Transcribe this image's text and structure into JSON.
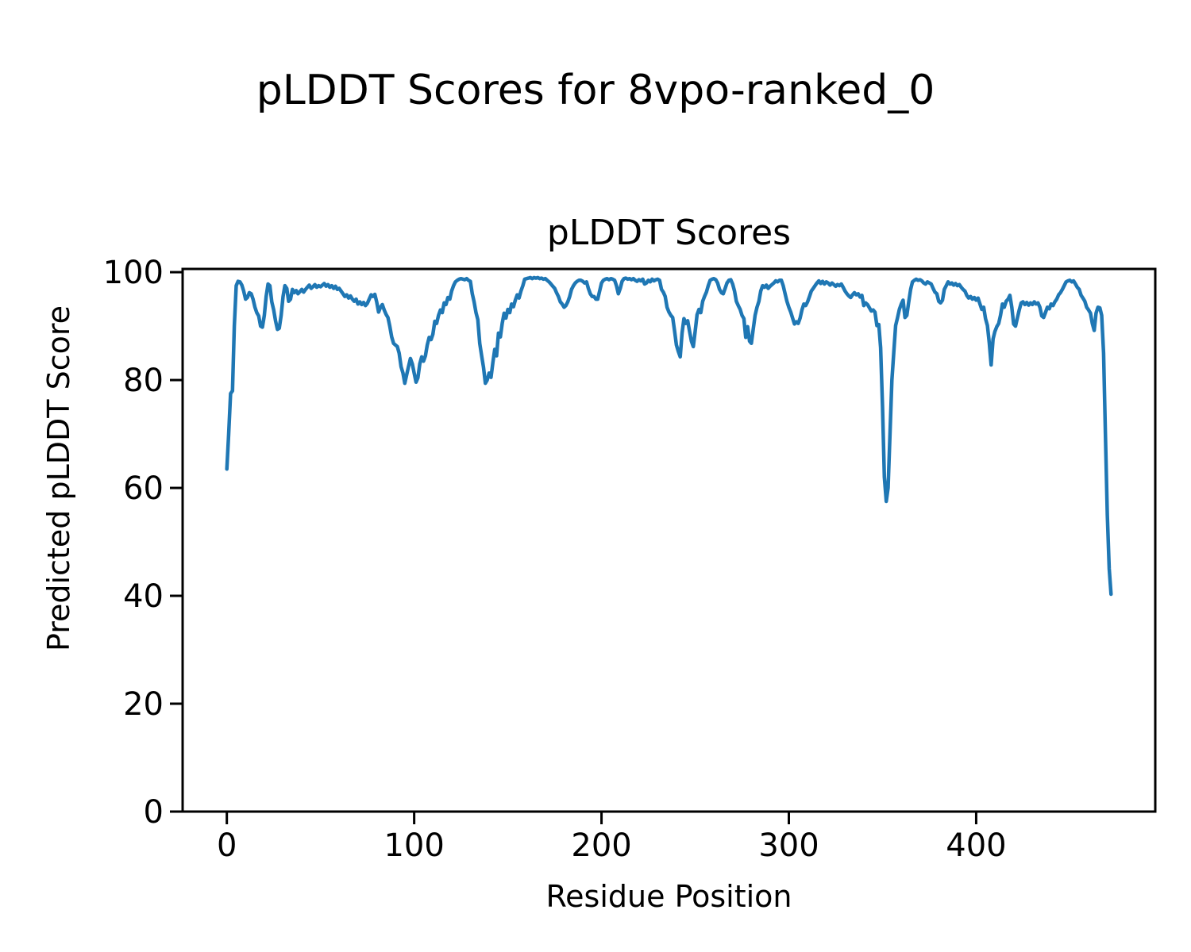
{
  "chart_data": {
    "type": "line",
    "figure_title": "pLDDT Scores for 8vpo-ranked_0",
    "title": "pLDDT Scores",
    "xlabel": "Residue Position",
    "ylabel": "Predicted pLDDT Score",
    "xlim": [
      -23.6,
      495.6
    ],
    "ylim": [
      0,
      100.6
    ],
    "xticks": [
      0,
      100,
      200,
      300,
      400
    ],
    "yticks": [
      0,
      20,
      40,
      60,
      80,
      100
    ],
    "grid": false,
    "legend_position": "none",
    "line_color": "#1f77b4",
    "axis_color": "#000000",
    "background": "#ffffff",
    "series": [
      {
        "name": "pLDDT",
        "x_start": 0,
        "x_step": 1,
        "values": [
          63.5,
          70.0,
          77.5,
          78.0,
          90.0,
          97.5,
          98.3,
          98.2,
          97.6,
          96.5,
          95.0,
          95.3,
          96.2,
          96.0,
          95.0,
          93.5,
          92.5,
          91.9,
          90.0,
          89.8,
          92.0,
          95.5,
          97.8,
          97.5,
          94.5,
          93.0,
          91.0,
          89.4,
          89.6,
          92.0,
          95.5,
          97.5,
          97.0,
          94.6,
          95.0,
          96.8,
          96.2,
          96.6,
          96.0,
          96.4,
          96.8,
          96.3,
          96.8,
          97.2,
          97.6,
          97.0,
          97.3,
          97.7,
          97.2,
          97.5,
          97.3,
          97.6,
          97.9,
          97.4,
          97.7,
          97.2,
          97.5,
          97.0,
          97.4,
          96.8,
          97.0,
          96.5,
          96.0,
          95.5,
          95.8,
          95.2,
          95.6,
          95.0,
          94.6,
          95.0,
          94.1,
          94.5,
          94.0,
          94.4,
          93.8,
          94.2,
          95.0,
          95.8,
          95.5,
          95.9,
          94.5,
          92.6,
          93.5,
          94.0,
          93.0,
          92.2,
          91.6,
          90.0,
          88.0,
          86.8,
          86.5,
          86.2,
          85.0,
          82.5,
          81.3,
          79.4,
          81.0,
          82.5,
          84.0,
          83.0,
          81.3,
          79.6,
          80.4,
          83.0,
          84.3,
          83.5,
          84.5,
          86.5,
          87.9,
          87.5,
          88.5,
          90.9,
          90.5,
          92.0,
          93.0,
          92.5,
          94.3,
          94.0,
          95.3,
          95.0,
          96.5,
          97.5,
          98.2,
          98.5,
          98.7,
          98.8,
          98.7,
          98.6,
          98.8,
          98.5,
          98.3,
          96.0,
          94.5,
          92.5,
          91.2,
          86.8,
          84.5,
          82.4,
          79.4,
          80.0,
          81.3,
          80.5,
          83.2,
          85.7,
          84.5,
          88.7,
          88.0,
          90.5,
          92.4,
          91.5,
          93.1,
          92.5,
          94.1,
          93.6,
          94.8,
          95.8,
          95.2,
          96.5,
          97.5,
          98.7,
          98.8,
          98.9,
          99.0,
          98.8,
          99.0,
          98.9,
          99.0,
          98.8,
          98.9,
          98.7,
          98.8,
          98.5,
          98.2,
          97.8,
          97.4,
          97.0,
          96.2,
          95.5,
          94.5,
          94.1,
          93.5,
          93.8,
          94.5,
          95.5,
          96.8,
          97.5,
          98.0,
          98.3,
          98.5,
          98.5,
          98.3,
          98.0,
          98.2,
          97.0,
          96.0,
          95.5,
          95.5,
          95.0,
          95.0,
          96.5,
          98.0,
          98.5,
          98.7,
          98.8,
          98.6,
          98.8,
          98.7,
          98.5,
          97.5,
          96.0,
          97.0,
          98.3,
          98.8,
          98.9,
          98.7,
          98.8,
          98.6,
          98.8,
          98.5,
          98.3,
          98.6,
          98.4,
          98.7,
          97.8,
          98.0,
          98.5,
          98.2,
          98.7,
          98.4,
          98.6,
          98.7,
          98.5,
          96.8,
          96.3,
          95.5,
          93.5,
          92.6,
          92.0,
          91.6,
          89.1,
          86.5,
          85.3,
          84.3,
          88.7,
          91.4,
          90.5,
          91.0,
          89.0,
          87.2,
          86.2,
          89.0,
          92.1,
          93.1,
          92.5,
          94.6,
          95.5,
          96.3,
          97.5,
          98.5,
          98.7,
          98.8,
          98.6,
          98.0,
          96.8,
          96.2,
          96.0,
          97.0,
          98.0,
          98.5,
          98.6,
          97.8,
          96.5,
          94.6,
          93.8,
          93.1,
          92.0,
          91.4,
          87.9,
          89.9,
          87.2,
          86.8,
          89.5,
          92.0,
          93.5,
          94.6,
          96.5,
          97.5,
          97.2,
          97.6,
          97.0,
          97.4,
          97.7,
          98.0,
          98.4,
          98.2,
          98.5,
          98.5,
          97.5,
          96.0,
          94.6,
          93.5,
          92.6,
          91.5,
          90.4,
          90.8,
          90.5,
          91.5,
          93.0,
          94.1,
          93.8,
          94.5,
          95.5,
          96.5,
          97.0,
          97.5,
          98.0,
          98.4,
          97.9,
          98.3,
          97.8,
          98.2,
          98.0,
          97.6,
          98.0,
          97.7,
          97.4,
          97.7,
          97.5,
          97.8,
          97.2,
          96.5,
          96.0,
          95.6,
          95.3,
          95.8,
          96.2,
          95.8,
          96.0,
          95.4,
          95.7,
          93.8,
          94.3,
          94.0,
          93.4,
          92.8,
          93.0,
          92.6,
          90.1,
          90.3,
          86.0,
          75.0,
          62.0,
          57.5,
          60.0,
          70.0,
          80.0,
          85.0,
          90.1,
          91.5,
          93.1,
          94.1,
          94.8,
          91.6,
          92.0,
          94.5,
          96.8,
          98.2,
          98.5,
          98.7,
          98.5,
          98.6,
          98.4,
          98.0,
          97.8,
          98.2,
          98.0,
          97.8,
          97.0,
          96.3,
          96.0,
          94.6,
          94.3,
          94.8,
          96.8,
          97.5,
          98.2,
          97.8,
          98.0,
          97.6,
          97.9,
          97.5,
          97.7,
          97.2,
          96.8,
          96.5,
          95.7,
          95.2,
          95.5,
          95.0,
          95.3,
          94.8,
          95.2,
          94.1,
          93.1,
          93.5,
          91.4,
          90.1,
          86.8,
          82.8,
          87.6,
          89.0,
          89.9,
          90.5,
          92.0,
          94.1,
          93.5,
          94.6,
          95.0,
          95.7,
          93.5,
          90.4,
          90.0,
          91.5,
          93.0,
          94.3,
          94.5,
          94.0,
          94.4,
          93.9,
          94.3,
          94.0,
          94.5,
          94.1,
          94.3,
          93.5,
          91.9,
          91.6,
          92.5,
          93.5,
          93.2,
          94.1,
          93.8,
          94.5,
          95.0,
          95.8,
          96.2,
          96.8,
          97.5,
          98.2,
          98.4,
          98.5,
          98.2,
          98.4,
          97.8,
          97.2,
          96.8,
          95.7,
          95.2,
          94.6,
          93.5,
          93.0,
          92.4,
          90.5,
          89.2,
          92.4,
          93.5,
          93.4,
          92.0,
          85.0,
          70.0,
          55.0,
          45.0,
          40.3
        ]
      }
    ]
  }
}
